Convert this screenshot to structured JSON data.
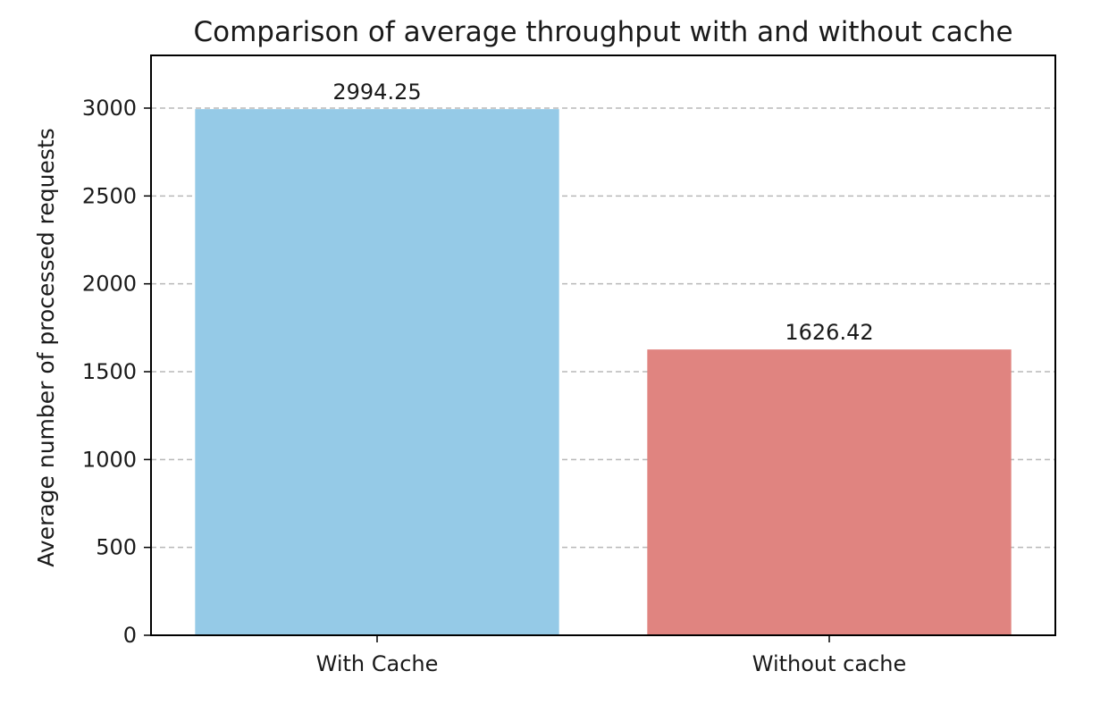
{
  "chart_data": {
    "type": "bar",
    "title": "Comparison of average throughput with and without cache",
    "xlabel": "",
    "ylabel": "Average number of processed requests",
    "categories": [
      "With Cache",
      "Without cache"
    ],
    "values": [
      2994.25,
      1626.42
    ],
    "value_labels": [
      "2994.25",
      "1626.42"
    ],
    "bar_colors": [
      "#95cae7",
      "#e08480"
    ],
    "ylim": [
      0,
      3300
    ],
    "yticks": [
      0,
      500,
      1000,
      1500,
      2000,
      2500,
      3000
    ],
    "ytick_labels": [
      "0",
      "500",
      "1000",
      "1500",
      "2000",
      "2500",
      "3000"
    ],
    "grid": "y-dashed",
    "legend": "none"
  }
}
